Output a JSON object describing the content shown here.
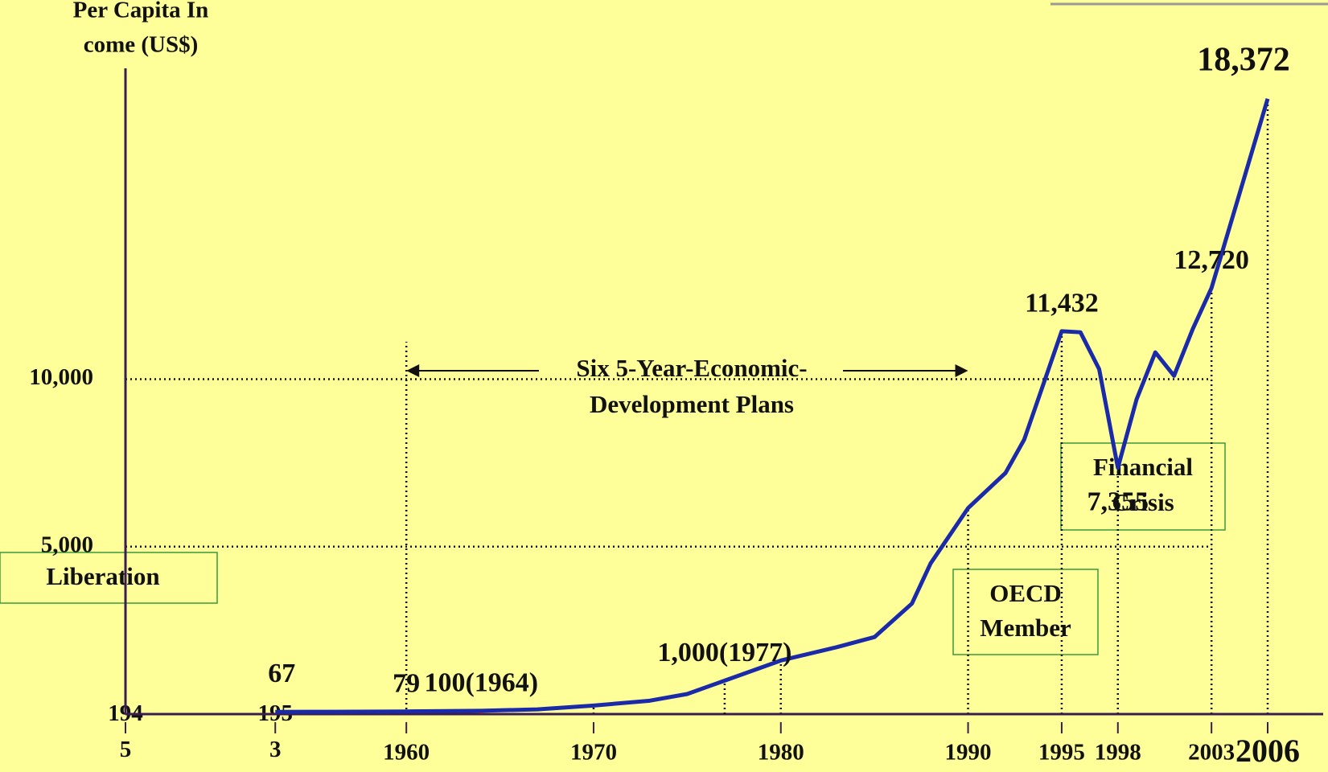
{
  "chart_data": {
    "type": "line",
    "ylabel": [
      "Per Capita  In",
      "come (US$)"
    ],
    "x": [
      1953,
      1956,
      1960,
      1964,
      1967,
      1970,
      1973,
      1975,
      1977,
      1980,
      1983,
      1985,
      1987,
      1988,
      1990,
      1992,
      1993,
      1995,
      1996,
      1997,
      1998,
      1999,
      2000,
      2001,
      2002,
      2003,
      2006
    ],
    "series": [
      {
        "name": "Per Capita Income",
        "color": "#1a2aa8",
        "values": [
          67,
          70,
          79,
          100,
          140,
          255,
          400,
          600,
          1000,
          1600,
          2000,
          2300,
          3300,
          4500,
          6150,
          7200,
          8200,
          11432,
          11400,
          10300,
          7355,
          9400,
          10800,
          10100,
          11500,
          12720,
          18372
        ],
        "value_labels": [
          null,
          null,
          "79",
          "100(1964)",
          null,
          null,
          null,
          null,
          "1,000(1977)",
          null,
          null,
          null,
          null,
          null,
          null,
          null,
          null,
          "11,432",
          null,
          null,
          "7,355",
          null,
          null,
          null,
          null,
          "12,720",
          "18,372"
        ],
        "value_label_colors": [
          null,
          null,
          "#f26522",
          null,
          null,
          null,
          null,
          null,
          null,
          null,
          null,
          null,
          null,
          null,
          null,
          null,
          null,
          null,
          null,
          null,
          null,
          null,
          null,
          null,
          null,
          null,
          "#f26522"
        ]
      }
    ],
    "point_labels": [
      {
        "x": 1953,
        "label": "67"
      }
    ],
    "xlim": [
      1945,
      2006
    ],
    "xticks": [
      {
        "value": 1945,
        "label": "194 5"
      },
      {
        "value": 1953,
        "label": "195 3"
      },
      {
        "value": 1960,
        "label": "1960",
        "color": "#f26522"
      },
      1970,
      1980,
      1990,
      1995,
      1998,
      2003,
      {
        "value": 2006,
        "label": "2006",
        "color": "#f26522"
      }
    ],
    "ylim": [
      0,
      20000
    ],
    "yticks": [
      {
        "value": 5000,
        "label": "5,000"
      },
      {
        "value": 10000,
        "label": "10,000"
      }
    ],
    "grid": true,
    "annotations": {
      "plans": [
        "Six 5-Year-Economic-",
        "Development Plans"
      ],
      "liberation": "Liberation",
      "oecd": [
        "OECD",
        "Member"
      ],
      "crisis": [
        "Financial",
        "Crisis"
      ]
    }
  }
}
